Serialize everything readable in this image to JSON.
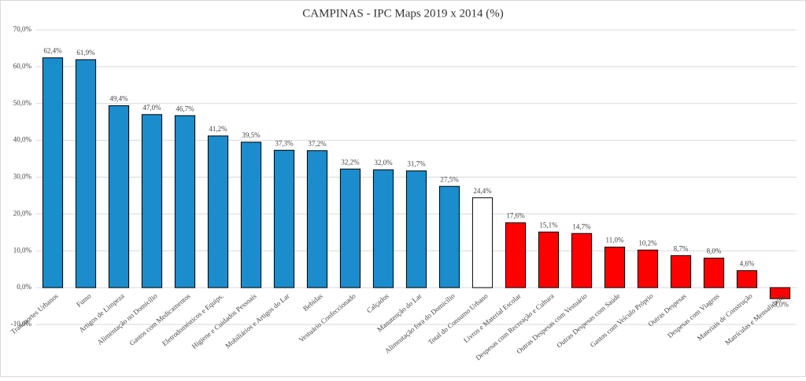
{
  "chart_data": {
    "type": "bar",
    "title": "CAMPINAS - IPC Maps 2019 x 2014 (%)",
    "categories": [
      "Transportes Urbanos",
      "Fumo",
      "Artigos de Limpeza",
      "Alimentação no Domicílio",
      "Gastos com Medicamentos",
      "Eletrodomésticos e Equips.",
      "Higiene e Cuidados Pessoais",
      "Mobiliários e Artigos do Lar",
      "Bebidas",
      "Vestuário Confeccionado",
      "Calçados",
      "Manutenção do Lar",
      "Alimentação fora do Domicílio",
      "Total do Consumo Urbano",
      "Livros e Material Escolar",
      "Despesas com Recreação e Cultura",
      "Outras Despesas com Vestuário",
      "Outras Despesas com Saúde",
      "Gastos com Veículo Próprio",
      "Outras Despesas",
      "Despesas com Viagens",
      "Materiais de Construção",
      "Matrículas e Mensalidades"
    ],
    "values": [
      62.4,
      61.9,
      49.4,
      47.0,
      46.7,
      41.2,
      39.5,
      37.3,
      37.2,
      32.2,
      32.0,
      31.7,
      27.5,
      24.4,
      17.6,
      15.1,
      14.7,
      11.0,
      10.2,
      8.7,
      8.0,
      4.6,
      -3.0
    ],
    "value_labels": [
      "62,4%",
      "61,9%",
      "49,4%",
      "47,0%",
      "46,7%",
      "41,2%",
      "39,5%",
      "37,3%",
      "37,2%",
      "32,2%",
      "32,0%",
      "31,7%",
      "27,5%",
      "24,4%",
      "17,6%",
      "15,1%",
      "14,7%",
      "11,0%",
      "10,2%",
      "8,7%",
      "8,0%",
      "4,6%",
      "-3,0%"
    ],
    "colors": [
      "#1b8ccc",
      "#1b8ccc",
      "#1b8ccc",
      "#1b8ccc",
      "#1b8ccc",
      "#1b8ccc",
      "#1b8ccc",
      "#1b8ccc",
      "#1b8ccc",
      "#1b8ccc",
      "#1b8ccc",
      "#1b8ccc",
      "#1b8ccc",
      "#ffffff",
      "#ff0000",
      "#ff0000",
      "#ff0000",
      "#ff0000",
      "#ff0000",
      "#ff0000",
      "#ff0000",
      "#ff0000",
      "#ff0000"
    ],
    "ylim": [
      -10,
      70
    ],
    "yticks": [
      {
        "value": -10,
        "label": "-10,0%"
      },
      {
        "value": 0,
        "label": "0,0%"
      },
      {
        "value": 10,
        "label": "10,0%"
      },
      {
        "value": 20,
        "label": "20,0%"
      },
      {
        "value": 30,
        "label": "30,0%"
      },
      {
        "value": 40,
        "label": "40,0%"
      },
      {
        "value": 50,
        "label": "50,0%"
      },
      {
        "value": 60,
        "label": "60,0%"
      },
      {
        "value": 70,
        "label": "70,0%"
      }
    ],
    "grid": true
  }
}
